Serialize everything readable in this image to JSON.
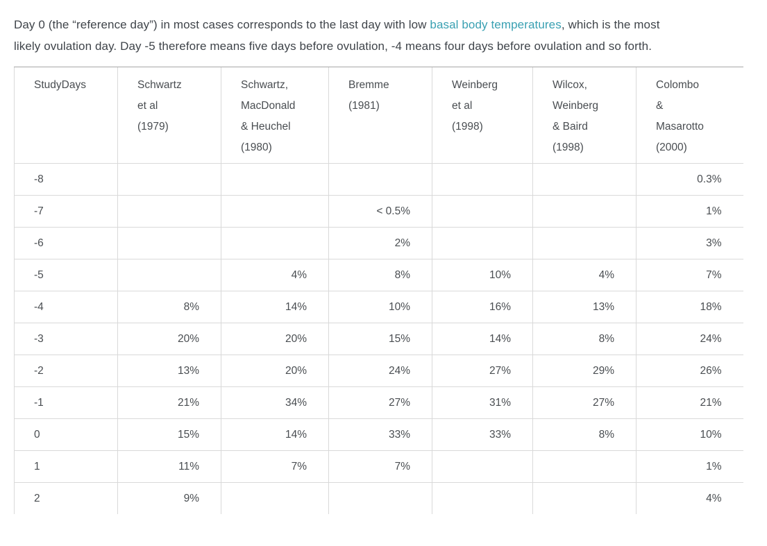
{
  "intro": {
    "line1_before_link": "Day 0 (the “reference day”) in most cases corresponds to the last day with low ",
    "link_text": "basal body temperatures",
    "line1_after_link": ", which is the most",
    "line2": "likely ovulation day. Day -5 therefore means five days before ovulation, -4 means four days before ovulation and so forth.",
    "link_color": "#39a0b2"
  },
  "table": {
    "columns": [
      "StudyDays",
      "Schwartz\net al\n(1979)",
      "Schwartz,\nMacDonald\n& Heuchel\n(1980)",
      "Bremme\n(1981)",
      "Weinberg\net al\n(1998)",
      "Wilcox,\nWeinberg\n& Baird\n(1998)",
      "Colombo\n&\nMasarotto\n(2000)"
    ],
    "rows": [
      [
        "-8",
        "",
        "",
        "",
        "",
        "",
        "0.3%"
      ],
      [
        "-7",
        "",
        "",
        "< 0.5%",
        "",
        "",
        "1%"
      ],
      [
        "-6",
        "",
        "",
        "2%",
        "",
        "",
        "3%"
      ],
      [
        "-5",
        "",
        "4%",
        "8%",
        "10%",
        "4%",
        "7%"
      ],
      [
        "-4",
        "8%",
        "14%",
        "10%",
        "16%",
        "13%",
        "18%"
      ],
      [
        "-3",
        "20%",
        "20%",
        "15%",
        "14%",
        "8%",
        "24%"
      ],
      [
        "-2",
        "13%",
        "20%",
        "24%",
        "27%",
        "29%",
        "26%"
      ],
      [
        "-1",
        "21%",
        "34%",
        "27%",
        "31%",
        "27%",
        "21%"
      ],
      [
        "0",
        "15%",
        "14%",
        "33%",
        "33%",
        "8%",
        "10%"
      ],
      [
        "1",
        "11%",
        "7%",
        "7%",
        "",
        "",
        "1%"
      ],
      [
        "2",
        "9%",
        "",
        "",
        "",
        "",
        "4%"
      ]
    ]
  },
  "colors": {
    "link": "#39a0b2",
    "body_text": "#3f444a",
    "table_text": "#494d51",
    "border_inner": "#d9d9d9",
    "border_top": "#a6a6a6"
  }
}
